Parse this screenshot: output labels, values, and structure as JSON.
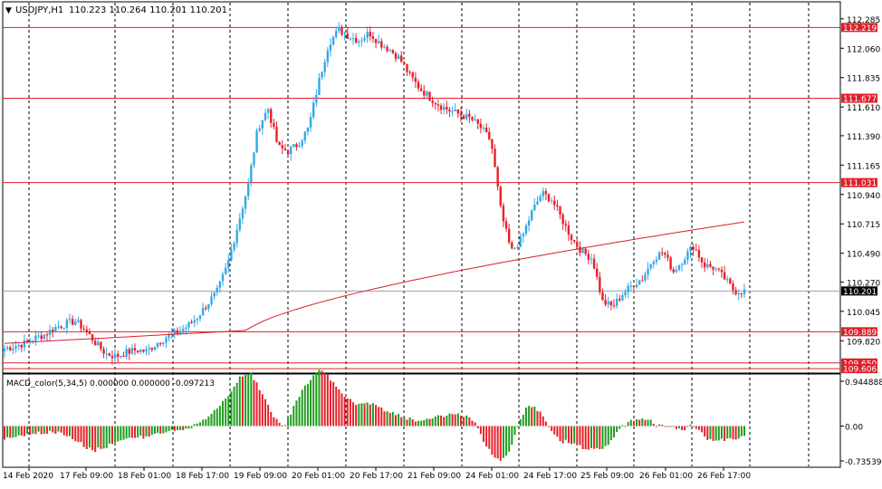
{
  "symbol_header": {
    "menu_glyph": "▼",
    "symbol": "USDJPY,H1",
    "ohlc": "110.223 110.264 110.201 110.201"
  },
  "price_axis": {
    "ticks": [
      "112.285",
      "112.060",
      "111.835",
      "111.610",
      "111.390",
      "111.165",
      "110.940",
      "110.715",
      "110.490",
      "110.270",
      "110.045",
      "109.820"
    ],
    "min": 109.6,
    "max": 112.36,
    "current_price": "110.201"
  },
  "horizontal_levels": [
    {
      "label": "112.219",
      "value": 112.219
    },
    {
      "label": "111.677",
      "value": 111.677
    },
    {
      "label": "111.031",
      "value": 111.031
    },
    {
      "label": "109.889",
      "value": 109.889
    },
    {
      "label": "109.650",
      "value": 109.65
    },
    {
      "label": "109.606",
      "value": 109.606
    }
  ],
  "time_axis": {
    "labels": [
      "14 Feb 2020",
      "17 Feb 09:00",
      "18 Feb 01:00",
      "18 Feb 17:00",
      "19 Feb 09:00",
      "20 Feb 01:00",
      "20 Feb 17:00",
      "21 Feb 09:00",
      "24 Feb 01:00",
      "24 Feb 17:00",
      "25 Feb 09:00",
      "26 Feb 01:00",
      "26 Feb 17:00"
    ]
  },
  "macd_panel": {
    "title": "MACD_color(5,34,5) 0.000000 0.000000 -0.097213",
    "ticks": [
      "0.944888",
      "0.00",
      "-0.735392"
    ],
    "max": 0.944888,
    "min": -0.735392
  },
  "colors": {
    "bull": "#35a8e6",
    "bear": "#e8202a",
    "level_line": "#e0202a",
    "ma_line": "#d8202a",
    "macd_up": "#1f9e1f",
    "macd_down": "#e8202a",
    "grid": "#000000",
    "current_price_bg": "#000000"
  },
  "chart_data": {
    "type": "candlestick",
    "close_anchors": [
      109.76,
      109.78,
      109.8,
      109.84,
      109.87,
      109.92,
      109.95,
      109.97,
      109.9,
      109.8,
      109.72,
      109.7,
      109.73,
      109.75,
      109.74,
      109.8,
      109.85,
      109.88,
      109.93,
      110.0,
      110.1,
      110.2,
      110.4,
      110.7,
      111.0,
      111.45,
      111.6,
      111.3,
      111.27,
      111.33,
      111.45,
      111.8,
      112.1,
      112.2,
      112.15,
      112.12,
      112.18,
      112.1,
      112.05,
      111.98,
      111.85,
      111.75,
      111.68,
      111.62,
      111.58,
      111.55,
      111.52,
      111.45,
      111.35,
      110.8,
      110.5,
      110.6,
      110.8,
      110.95,
      110.9,
      110.75,
      110.6,
      110.5,
      110.45,
      110.12,
      110.08,
      110.18,
      110.25,
      110.3,
      110.45,
      110.5,
      110.35,
      110.45,
      110.55,
      110.4,
      110.38,
      110.3,
      110.2,
      110.2
    ],
    "moving_average": {
      "start": 109.8,
      "end": 110.73
    },
    "levels": [
      112.219,
      111.677,
      111.031,
      109.889,
      109.65,
      109.606
    ]
  }
}
